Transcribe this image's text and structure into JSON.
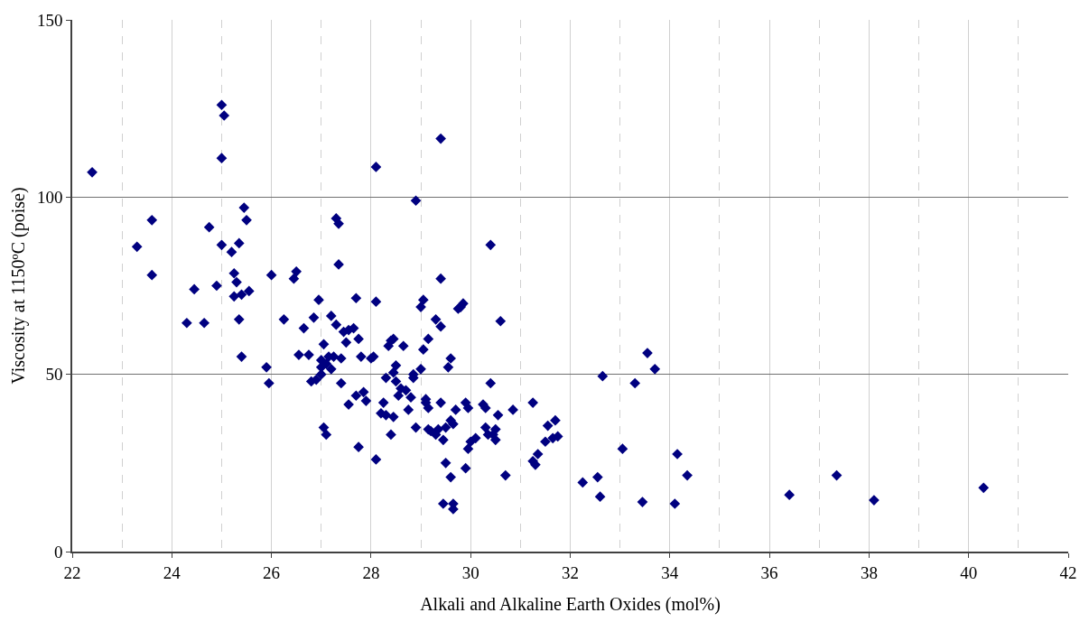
{
  "chart_data": {
    "type": "scatter",
    "xlabel": "Alkali and Alkaline Earth Oxides (mol%)",
    "ylabel": "Viscosity at 1150ºC (poise)",
    "xlim": [
      22,
      42
    ],
    "ylim": [
      0,
      150
    ],
    "xticks": [
      22,
      {
        "value": 23,
        "label": null
      },
      24,
      {
        "value": 25,
        "label": null
      },
      26,
      {
        "value": 27,
        "label": null
      },
      28,
      {
        "value": 29,
        "label": null
      },
      30,
      {
        "value": 31,
        "label": null
      },
      32,
      {
        "value": 33,
        "label": null
      },
      34,
      {
        "value": 35,
        "label": null
      },
      36,
      {
        "value": 37,
        "label": null
      },
      38,
      {
        "value": 39,
        "label": null
      },
      40,
      {
        "value": 41,
        "label": null
      },
      42
    ],
    "yticks": [
      0,
      50,
      100,
      150
    ],
    "grid": true,
    "marker": "diamond",
    "series": [
      {
        "color": "#000080",
        "x": [
          22.4,
          23.3,
          23.6,
          23.6,
          24.3,
          24.45,
          24.65,
          24.75,
          24.9,
          25.0,
          25.0,
          25.05,
          25.0,
          25.2,
          25.25,
          25.3,
          25.25,
          25.35,
          25.35,
          25.4,
          25.4,
          25.45,
          25.5,
          25.55,
          25.9,
          25.95,
          26.0,
          26.25,
          26.45,
          26.5,
          26.55,
          26.65,
          26.75,
          26.8,
          26.85,
          26.9,
          26.95,
          27.0,
          27.0,
          27.05,
          27.0,
          27.1,
          27.15,
          27.2,
          27.25,
          27.05,
          27.1,
          27.2,
          27.3,
          27.3,
          27.35,
          27.35,
          27.4,
          27.4,
          27.45,
          27.5,
          27.55,
          27.55,
          27.7,
          27.65,
          27.7,
          27.75,
          27.8,
          27.75,
          27.85,
          27.9,
          28.0,
          28.05,
          28.1,
          28.1,
          28.1,
          28.2,
          28.25,
          28.3,
          28.3,
          28.35,
          28.4,
          28.4,
          28.45,
          28.45,
          28.45,
          28.5,
          28.5,
          28.55,
          28.6,
          28.65,
          28.7,
          28.75,
          28.8,
          28.85,
          28.85,
          28.9,
          28.9,
          29.0,
          29.05,
          29.0,
          29.05,
          29.1,
          29.1,
          29.15,
          29.15,
          29.15,
          29.2,
          29.3,
          29.3,
          29.35,
          29.4,
          29.4,
          29.4,
          29.4,
          29.45,
          29.45,
          29.5,
          29.5,
          29.55,
          29.6,
          29.6,
          29.6,
          29.65,
          29.65,
          29.65,
          29.7,
          29.75,
          29.8,
          29.85,
          29.9,
          29.9,
          29.95,
          29.95,
          30.0,
          30.1,
          30.25,
          30.3,
          30.3,
          30.35,
          30.4,
          30.4,
          30.45,
          30.5,
          30.5,
          30.55,
          30.6,
          30.7,
          30.85,
          31.25,
          31.25,
          31.3,
          31.35,
          31.5,
          31.55,
          31.65,
          31.7,
          31.75,
          32.25,
          32.55,
          32.6,
          32.65,
          33.05,
          33.3,
          33.45,
          33.55,
          33.7,
          34.1,
          34.15,
          34.35,
          36.4,
          37.35,
          38.1,
          40.3
        ],
        "values": [
          107,
          86,
          78,
          93.5,
          64.5,
          74,
          64.5,
          91.5,
          75,
          126,
          111,
          123,
          86.5,
          84.5,
          78.5,
          76,
          72,
          87,
          65.5,
          72.5,
          55,
          97,
          93.5,
          73.5,
          52,
          47.5,
          78,
          65.5,
          77,
          79,
          55.5,
          63,
          55.5,
          48,
          66,
          48.5,
          71,
          52,
          54,
          58.5,
          50,
          53,
          55,
          51.5,
          55,
          35,
          33,
          66.5,
          64,
          94,
          92.5,
          81,
          54.5,
          47.5,
          62,
          59,
          41.5,
          62.5,
          44,
          63,
          71.5,
          60,
          55,
          29.5,
          45,
          42.5,
          54.5,
          55,
          26,
          70.5,
          108.5,
          39,
          42,
          38.5,
          49,
          58,
          59.5,
          33,
          60,
          50.5,
          38,
          52.5,
          48,
          44,
          46,
          58,
          45.5,
          40,
          43.5,
          50,
          49,
          99,
          35,
          69,
          71,
          51.5,
          57,
          42,
          43,
          40.5,
          60,
          34.5,
          34,
          65.5,
          33,
          34.5,
          77,
          116.5,
          63.5,
          42,
          13.5,
          31.5,
          35,
          25,
          52,
          21,
          54.5,
          37,
          36,
          13.5,
          12,
          40,
          68.5,
          69,
          70,
          42,
          23.5,
          40.5,
          29,
          31,
          32,
          41.5,
          35,
          40.5,
          33,
          47.5,
          86.5,
          33,
          34.5,
          31.5,
          38.5,
          65,
          21.5,
          40,
          42,
          25.5,
          24.5,
          27.5,
          31,
          35.5,
          32,
          37,
          32.5,
          19.5,
          21,
          15.5,
          49.5,
          29,
          47.5,
          14,
          56,
          51.5,
          13.5,
          27.5,
          21.5,
          16,
          21.5,
          14.5,
          18
        ]
      }
    ]
  }
}
